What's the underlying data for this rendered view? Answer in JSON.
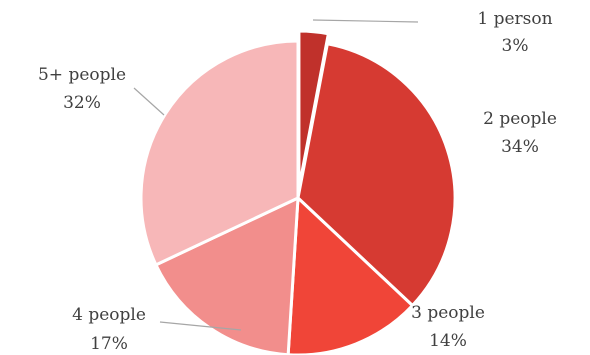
{
  "chart_data": {
    "type": "pie",
    "title": "",
    "legend": "none",
    "start_angle_deg": 0,
    "direction": "clockwise",
    "exploded_slices": [
      "1 person"
    ],
    "categories": [
      "1 person",
      "2 people",
      "3 people",
      "4 people",
      "5+ people"
    ],
    "values": [
      3,
      34,
      14,
      17,
      32
    ],
    "value_labels": [
      "3%",
      "34%",
      "14%",
      "17%",
      "32%"
    ],
    "colors": [
      "#c0312b",
      "#d63a32",
      "#f04538",
      "#f28e8c",
      "#f7b7b8"
    ],
    "label_color": "#404040",
    "leader_line_color": "#a6a6a6"
  }
}
